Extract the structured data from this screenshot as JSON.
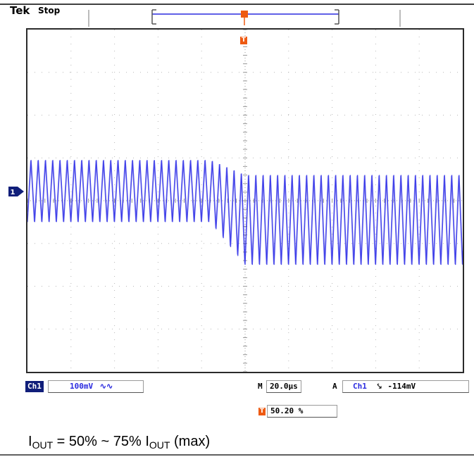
{
  "header": {
    "brand": "Tek",
    "status": "Stop"
  },
  "colors": {
    "trace": "#2a2ae6",
    "trigger": "#ee5a12",
    "badge": "#101e7a",
    "grid": "#b8b8b8"
  },
  "icons": {
    "trigger_marker": "T",
    "channel_marker": "1"
  },
  "readouts": {
    "channel": "Ch1",
    "ch1_scale": "100mV",
    "coupling_symbol": "∿∿",
    "timebase_prefix": "M",
    "timebase": "20.0µs",
    "trigger_mode": "A",
    "trigger_source": "Ch1",
    "trigger_slope": "⤥",
    "trigger_level": "-114mV",
    "trigger_position": "50.20 %"
  },
  "caption": {
    "prefix": "I",
    "sub1": "OUT",
    "middle": " = 50% ~ 75% I",
    "sub2": "OUT",
    "suffix": " (max)"
  },
  "chart_data": {
    "type": "line",
    "grid": {
      "divisions_x": 10,
      "divisions_y": 8,
      "on": true
    },
    "x_units": "µs",
    "x_per_div": 20.0,
    "y_units": "mV",
    "y_per_div": 100,
    "xlim": [
      -100,
      100
    ],
    "ylim": [
      -400,
      400
    ],
    "series": [
      {
        "ripple_frequency_khz": 300,
        "segments": [
          {
            "x": [
              -100,
              -16
            ],
            "min_mV": -50,
            "max_mV": 95
          },
          {
            "x": [
              -16,
              0
            ],
            "min_mV": -150,
            "max_mV": 60,
            "transition": true
          },
          {
            "x": [
              0,
              100
            ],
            "min_mV": -150,
            "max_mV": 60
          }
        ]
      }
    ],
    "trigger_x_us": 0
  }
}
